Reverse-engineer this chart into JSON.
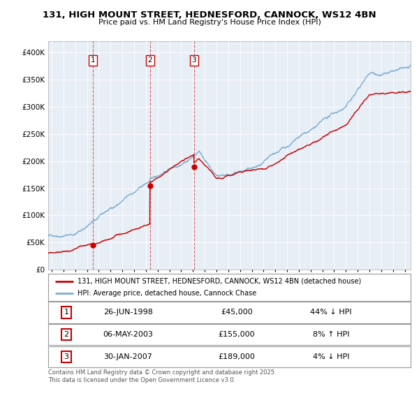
{
  "title": "131, HIGH MOUNT STREET, HEDNESFORD, CANNOCK, WS12 4BN",
  "subtitle": "Price paid vs. HM Land Registry's House Price Index (HPI)",
  "background_color": "#ffffff",
  "plot_background": "#e8eef5",
  "grid_color": "#ffffff",
  "hpi_color": "#7bafd4",
  "price_color": "#cc0000",
  "ylim": [
    0,
    420000
  ],
  "yticks": [
    0,
    50000,
    100000,
    150000,
    200000,
    250000,
    300000,
    350000,
    400000
  ],
  "ytick_labels": [
    "£0",
    "£50K",
    "£100K",
    "£150K",
    "£200K",
    "£250K",
    "£300K",
    "£350K",
    "£400K"
  ],
  "sales": [
    {
      "date_num": 1998.49,
      "price": 45000,
      "label": "1"
    },
    {
      "date_num": 2003.35,
      "price": 155000,
      "label": "2"
    },
    {
      "date_num": 2007.08,
      "price": 189000,
      "label": "3"
    }
  ],
  "vline_dates": [
    1998.49,
    2003.35,
    2007.08
  ],
  "table_rows": [
    {
      "num": "1",
      "date": "26-JUN-1998",
      "price": "£45,000",
      "hpi": "44% ↓ HPI"
    },
    {
      "num": "2",
      "date": "06-MAY-2003",
      "price": "£155,000",
      "hpi": "8% ↑ HPI"
    },
    {
      "num": "3",
      "date": "30-JAN-2007",
      "price": "£189,000",
      "hpi": "4% ↓ HPI"
    }
  ],
  "legend_line1": "131, HIGH MOUNT STREET, HEDNESFORD, CANNOCK, WS12 4BN (detached house)",
  "legend_line2": "HPI: Average price, detached house, Cannock Chase",
  "footnote": "Contains HM Land Registry data © Crown copyright and database right 2025.\nThis data is licensed under the Open Government Licence v3.0.",
  "xlim_start": 1994.7,
  "xlim_end": 2025.5
}
